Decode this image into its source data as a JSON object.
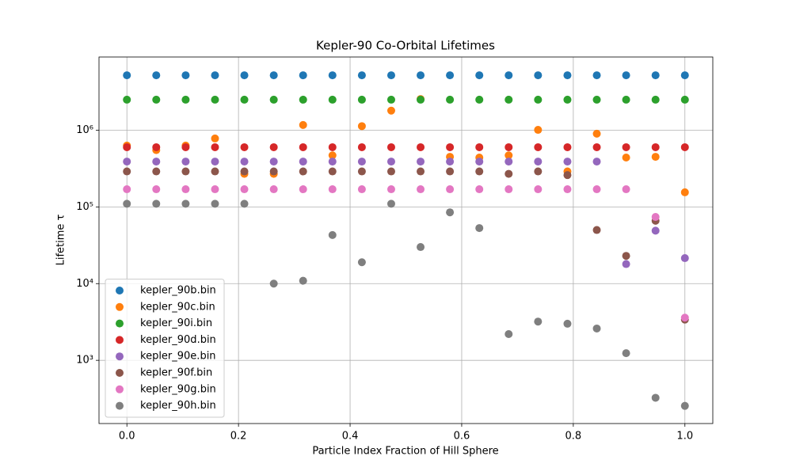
{
  "chart_data": {
    "type": "scatter",
    "title": "Kepler-90 Co-Orbital Lifetimes",
    "x_label": "Particle Index Fraction of Hill Sphere",
    "y_label": "Lifetime τ",
    "x": [
      0,
      0.0526,
      0.1053,
      0.1579,
      0.2105,
      0.2632,
      0.3158,
      0.3684,
      0.4211,
      0.4737,
      0.5263,
      0.5789,
      0.6316,
      0.6842,
      0.7368,
      0.7895,
      0.8421,
      0.8947,
      0.9474,
      1.0
    ],
    "xlim": [
      -0.05,
      1.05
    ],
    "xticks": [
      {
        "value": 0,
        "label": "0.0"
      },
      0.2,
      0.4,
      0.6,
      0.8,
      {
        "value": 1,
        "label": "1.0"
      }
    ],
    "ylim": [
      150,
      9000000
    ],
    "y_scale": "log",
    "yticks": [
      {
        "value": 1000,
        "label": "10³"
      },
      {
        "value": 10000,
        "label": "10⁴"
      },
      {
        "value": 100000,
        "label": "10⁵"
      },
      {
        "value": 1000000,
        "label": "10⁶"
      }
    ],
    "grid": true,
    "legend_loc": "lower left",
    "series": [
      {
        "name": "kepler_90b.bin",
        "color": "#1f77b4",
        "values": [
          5200000,
          5200000,
          5200000,
          5200000,
          5200000,
          5200000,
          5200000,
          5200000,
          5200000,
          5200000,
          5200000,
          5200000,
          5200000,
          5200000,
          5200000,
          5200000,
          5200000,
          5200000,
          5200000,
          5200000
        ]
      },
      {
        "name": "kepler_90c.bin",
        "color": "#ff7f0e",
        "values": [
          630000,
          550000,
          630000,
          780000,
          270000,
          270000,
          1170000,
          470000,
          1130000,
          1800000,
          2550000,
          450000,
          440000,
          470000,
          1010000,
          290000,
          900000,
          440000,
          450000,
          155000
        ]
      },
      {
        "name": "kepler_90i.bin",
        "color": "#2ca02c",
        "values": [
          2500000,
          2500000,
          2500000,
          2500000,
          2500000,
          2500000,
          2500000,
          2500000,
          2500000,
          2500000,
          2500000,
          2500000,
          2500000,
          2500000,
          2500000,
          2500000,
          2500000,
          2500000,
          2500000,
          2500000
        ]
      },
      {
        "name": "kepler_90d.bin",
        "color": "#d62728",
        "values": [
          600000,
          600000,
          600000,
          600000,
          600000,
          600000,
          600000,
          600000,
          600000,
          600000,
          600000,
          600000,
          600000,
          600000,
          600000,
          600000,
          600000,
          600000,
          600000,
          600000
        ]
      },
      {
        "name": "kepler_90e.bin",
        "color": "#9467bd",
        "values": [
          390000,
          390000,
          390000,
          390000,
          390000,
          390000,
          390000,
          390000,
          390000,
          390000,
          390000,
          390000,
          390000,
          390000,
          390000,
          390000,
          390000,
          18000,
          49000,
          21500
        ]
      },
      {
        "name": "kepler_90f.bin",
        "color": "#8c564b",
        "values": [
          290000,
          290000,
          290000,
          290000,
          290000,
          290000,
          290000,
          290000,
          290000,
          290000,
          290000,
          290000,
          290000,
          270000,
          290000,
          260000,
          50000,
          23000,
          66000,
          3400
        ]
      },
      {
        "name": "kepler_90g.bin",
        "color": "#e377c2",
        "values": [
          170000,
          170000,
          170000,
          170000,
          170000,
          170000,
          170000,
          170000,
          170000,
          170000,
          170000,
          170000,
          170000,
          170000,
          170000,
          170000,
          170000,
          170000,
          74000,
          3600
        ]
      },
      {
        "name": "kepler_90h.bin",
        "color": "#7f7f7f",
        "values": [
          110000,
          110000,
          110000,
          110000,
          110000,
          10000,
          10900,
          43000,
          19000,
          110000,
          30000,
          85000,
          53000,
          2200,
          3200,
          3000,
          2600,
          1240,
          325,
          255
        ]
      }
    ]
  }
}
